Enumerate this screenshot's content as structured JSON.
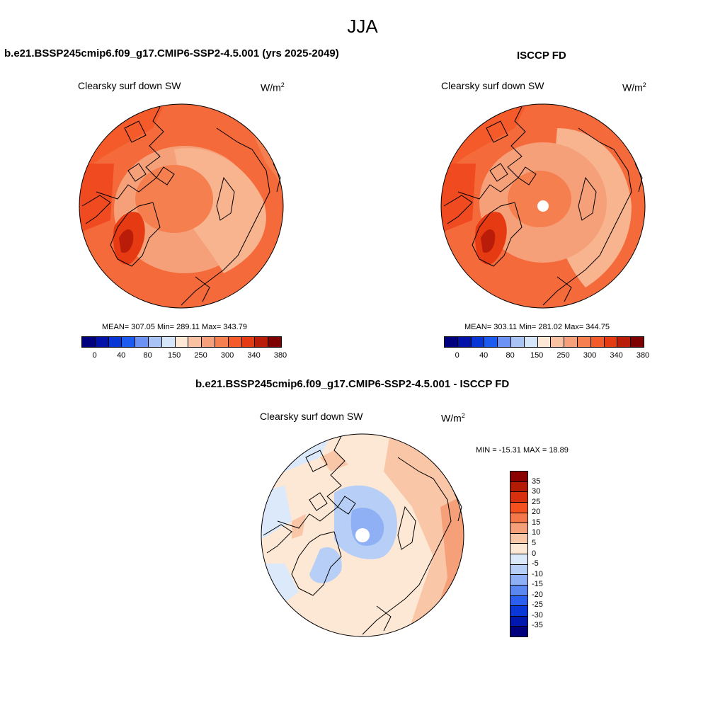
{
  "figure": {
    "season": "JJA"
  },
  "panels": {
    "left": {
      "case": "b.e21.BSSP245cmip6.f09_g17.CMIP6-SSP2-4.5.001 (yrs 2025-2049)",
      "variable": "Clearsky surf down SW",
      "unit_base": "W/m",
      "unit_exp": "2",
      "stats": "MEAN= 307.05  Min= 289.11  Max= 343.79"
    },
    "right": {
      "case": "ISCCP FD",
      "variable": "Clearsky surf down SW",
      "unit_base": "W/m",
      "unit_exp": "2",
      "stats": "MEAN= 303.11  Min= 281.02  Max= 344.75"
    },
    "diff": {
      "case": "b.e21.BSSP245cmip6.f09_g17.CMIP6-SSP2-4.5.001 - ISCCP FD",
      "variable": "Clearsky surf down SW",
      "unit_base": "W/m",
      "unit_exp": "2",
      "stats": "MIN = -15.31 MAX =  18.89"
    }
  },
  "colorbars": {
    "absolute": {
      "colors": [
        "#00007f",
        "#0012a8",
        "#0a35d6",
        "#1c5af0",
        "#6d92f5",
        "#a9c3f5",
        "#d6e6fa",
        "#fde8d6",
        "#f9c2a2",
        "#f6a07a",
        "#f57f4e",
        "#f45a2a",
        "#e63a12",
        "#b91c08",
        "#7f0000"
      ],
      "labels": [
        "0",
        "40",
        "80",
        "150",
        "250",
        "300",
        "340",
        "380"
      ]
    },
    "difference": {
      "colors": [
        "#8b0000",
        "#b31b05",
        "#d8300e",
        "#f4511f",
        "#f5784a",
        "#f6a07a",
        "#f9c7a8",
        "#fde8d6",
        "#dbe9fb",
        "#b7cff7",
        "#8fb0f4",
        "#5a88f0",
        "#2a5ff0",
        "#0a37d8",
        "#0018ad",
        "#00007f"
      ],
      "labels": [
        "35",
        "30",
        "25",
        "20",
        "15",
        "10",
        "5",
        "0",
        "-5",
        "-10",
        "-15",
        "-20",
        "-25",
        "-30",
        "-35"
      ]
    }
  }
}
